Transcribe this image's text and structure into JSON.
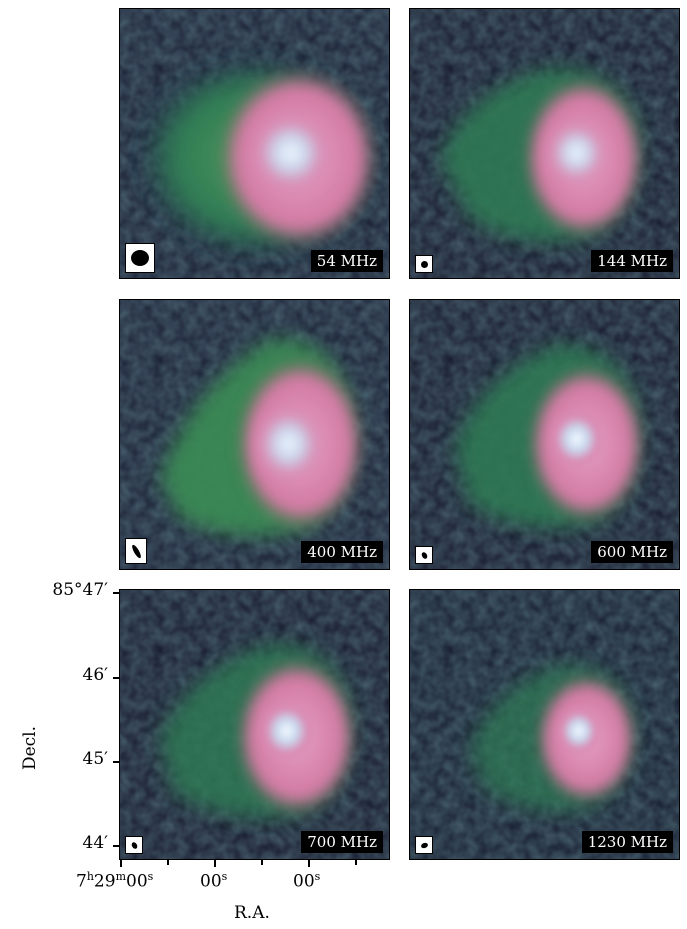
{
  "panels": [
    {
      "freq": "54 MHz"
    },
    {
      "freq": "144 MHz"
    },
    {
      "freq": "400 MHz"
    },
    {
      "freq": "600 MHz"
    },
    {
      "freq": "700 MHz"
    },
    {
      "freq": "1230 MHz"
    }
  ],
  "axes": {
    "ylabel": "Decl.",
    "xlabel": "R.A.",
    "yticks": [
      "85°47′",
      "46′",
      "45′",
      "44′"
    ],
    "xticks": {
      "first_prefix": "7",
      "first_h": "h",
      "first_mid": "29",
      "first_m": "m",
      "first_sec": "00",
      "first_s": "s",
      "second_sec": "00",
      "second_s": "s",
      "third_sec": "00",
      "third_s": "s"
    }
  },
  "colors": {
    "background": "#1b1f33",
    "green": "#3f8a4f",
    "pink": "#d77fa8",
    "white_core": "#f2f7ff"
  }
}
